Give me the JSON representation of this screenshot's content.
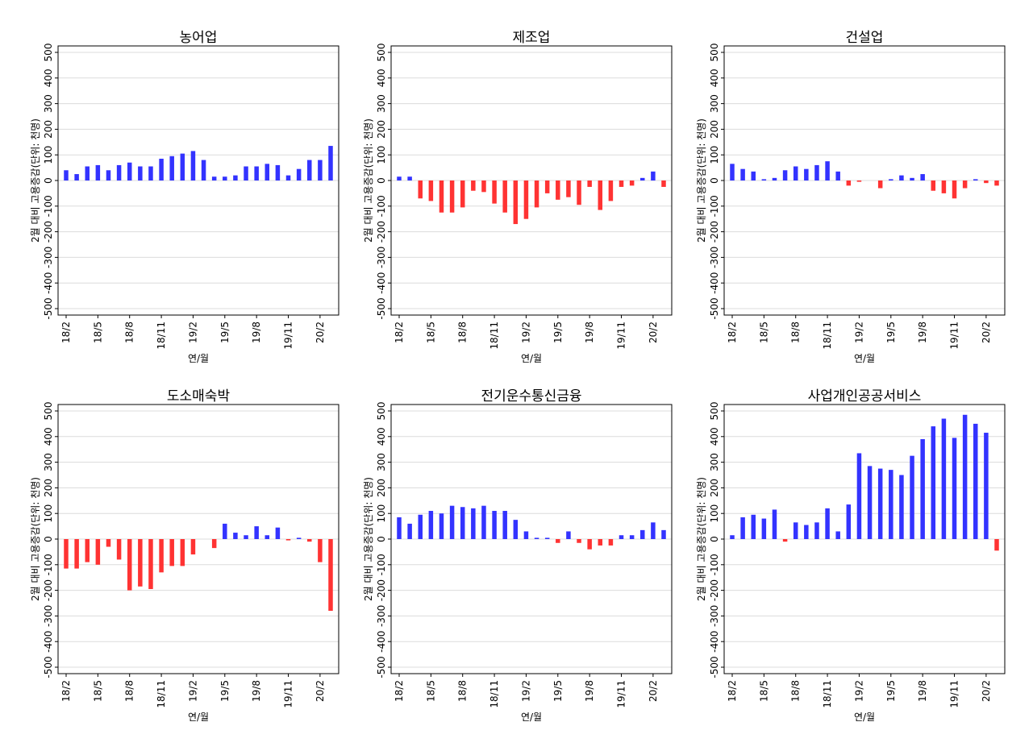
{
  "chart_data": [
    {
      "type": "bar",
      "title": "농어업",
      "xlabel": "연/월",
      "ylabel": "2월 대비 고용증감(단위: 천명)",
      "ylim": [
        -500,
        500
      ],
      "yticks": [
        -500,
        -400,
        -300,
        -200,
        -100,
        0,
        100,
        200,
        300,
        400,
        500
      ],
      "tick_labels": [
        "18/2",
        "18/5",
        "18/8",
        "18/11",
        "19/2",
        "19/5",
        "19/8",
        "19/11",
        "20/2"
      ],
      "categories": [
        "18/2",
        "18/3",
        "18/4",
        "18/5",
        "18/6",
        "18/7",
        "18/8",
        "18/9",
        "18/10",
        "18/11",
        "18/12",
        "19/1",
        "19/2",
        "19/3",
        "19/4",
        "19/5",
        "19/6",
        "19/7",
        "19/8",
        "19/9",
        "19/10",
        "19/11",
        "19/12",
        "20/1",
        "20/2",
        "20/3"
      ],
      "values": [
        40,
        25,
        55,
        60,
        40,
        60,
        70,
        55,
        55,
        85,
        95,
        105,
        115,
        80,
        15,
        15,
        20,
        55,
        55,
        65,
        60,
        20,
        45,
        80,
        80,
        135
      ],
      "colors": {
        "positive": "#3333ff",
        "negative": "#ff3333"
      },
      "grid": true
    },
    {
      "type": "bar",
      "title": "제조업",
      "xlabel": "연/월",
      "ylabel": "2월 대비 고용증감(단위: 천명)",
      "ylim": [
        -500,
        500
      ],
      "yticks": [
        -500,
        -400,
        -300,
        -200,
        -100,
        0,
        100,
        200,
        300,
        400,
        500
      ],
      "tick_labels": [
        "18/2",
        "18/5",
        "18/8",
        "18/11",
        "19/2",
        "19/5",
        "19/8",
        "19/11",
        "20/2"
      ],
      "categories": [
        "18/2",
        "18/3",
        "18/4",
        "18/5",
        "18/6",
        "18/7",
        "18/8",
        "18/9",
        "18/10",
        "18/11",
        "18/12",
        "19/1",
        "19/2",
        "19/3",
        "19/4",
        "19/5",
        "19/6",
        "19/7",
        "19/8",
        "19/9",
        "19/10",
        "19/11",
        "19/12",
        "20/1",
        "20/2",
        "20/3"
      ],
      "values": [
        15,
        15,
        -70,
        -80,
        -125,
        -125,
        -105,
        -40,
        -45,
        -90,
        -125,
        -170,
        -150,
        -105,
        -50,
        -75,
        -65,
        -95,
        -25,
        -115,
        -80,
        -25,
        -20,
        10,
        35,
        -25
      ],
      "colors": {
        "positive": "#3333ff",
        "negative": "#ff3333"
      },
      "grid": true
    },
    {
      "type": "bar",
      "title": "건설업",
      "xlabel": "연/월",
      "ylabel": "2월 대비 고용증감(단위: 천명)",
      "ylim": [
        -500,
        500
      ],
      "yticks": [
        -500,
        -400,
        -300,
        -200,
        -100,
        0,
        100,
        200,
        300,
        400,
        500
      ],
      "tick_labels": [
        "18/2",
        "18/5",
        "18/8",
        "18/11",
        "19/2",
        "19/5",
        "19/8",
        "19/11",
        "20/2"
      ],
      "categories": [
        "18/2",
        "18/3",
        "18/4",
        "18/5",
        "18/6",
        "18/7",
        "18/8",
        "18/9",
        "18/10",
        "18/11",
        "18/12",
        "19/1",
        "19/2",
        "19/3",
        "19/4",
        "19/5",
        "19/6",
        "19/7",
        "19/8",
        "19/9",
        "19/10",
        "19/11",
        "19/12",
        "20/1",
        "20/2",
        "20/3"
      ],
      "values": [
        65,
        45,
        35,
        5,
        10,
        40,
        55,
        45,
        60,
        75,
        35,
        -20,
        -5,
        0,
        -30,
        5,
        20,
        10,
        25,
        -40,
        -50,
        -70,
        -30,
        5,
        -10,
        -20
      ],
      "colors": {
        "positive": "#3333ff",
        "negative": "#ff3333"
      },
      "grid": true
    },
    {
      "type": "bar",
      "title": "도소매숙박",
      "xlabel": "연/월",
      "ylabel": "2월 대비 고용증감(단위: 천명)",
      "ylim": [
        -500,
        500
      ],
      "yticks": [
        -500,
        -400,
        -300,
        -200,
        -100,
        0,
        100,
        200,
        300,
        400,
        500
      ],
      "tick_labels": [
        "18/2",
        "18/5",
        "18/8",
        "18/11",
        "19/2",
        "19/5",
        "19/8",
        "19/11",
        "20/2"
      ],
      "categories": [
        "18/2",
        "18/3",
        "18/4",
        "18/5",
        "18/6",
        "18/7",
        "18/8",
        "18/9",
        "18/10",
        "18/11",
        "18/12",
        "19/1",
        "19/2",
        "19/3",
        "19/4",
        "19/5",
        "19/6",
        "19/7",
        "19/8",
        "19/9",
        "19/10",
        "19/11",
        "19/12",
        "20/1",
        "20/2",
        "20/3"
      ],
      "values": [
        -115,
        -115,
        -90,
        -100,
        -30,
        -80,
        -200,
        -185,
        -195,
        -130,
        -105,
        -105,
        -60,
        0,
        -35,
        60,
        25,
        15,
        50,
        15,
        45,
        -5,
        5,
        -10,
        -90,
        -280
      ],
      "colors": {
        "positive": "#3333ff",
        "negative": "#ff3333"
      },
      "grid": true
    },
    {
      "type": "bar",
      "title": "전기운수통신금융",
      "xlabel": "연/월",
      "ylabel": "2월 대비 고용증감(단위: 천명)",
      "ylim": [
        -500,
        500
      ],
      "yticks": [
        -500,
        -400,
        -300,
        -200,
        -100,
        0,
        100,
        200,
        300,
        400,
        500
      ],
      "tick_labels": [
        "18/2",
        "18/5",
        "18/8",
        "18/11",
        "19/2",
        "19/5",
        "19/8",
        "19/11",
        "20/2"
      ],
      "categories": [
        "18/2",
        "18/3",
        "18/4",
        "18/5",
        "18/6",
        "18/7",
        "18/8",
        "18/9",
        "18/10",
        "18/11",
        "18/12",
        "19/1",
        "19/2",
        "19/3",
        "19/4",
        "19/5",
        "19/6",
        "19/7",
        "19/8",
        "19/9",
        "19/10",
        "19/11",
        "19/12",
        "20/1",
        "20/2",
        "20/3"
      ],
      "values": [
        85,
        60,
        95,
        110,
        100,
        130,
        125,
        120,
        130,
        110,
        110,
        75,
        30,
        5,
        5,
        -15,
        30,
        -15,
        -40,
        -25,
        -25,
        15,
        15,
        35,
        65,
        35
      ],
      "colors": {
        "positive": "#3333ff",
        "negative": "#ff3333"
      },
      "grid": true
    },
    {
      "type": "bar",
      "title": "사업개인공공서비스",
      "xlabel": "연/월",
      "ylabel": "2월 대비 고용증감(단위: 천명)",
      "ylim": [
        -500,
        500
      ],
      "yticks": [
        -500,
        -400,
        -300,
        -200,
        -100,
        0,
        100,
        200,
        300,
        400,
        500
      ],
      "tick_labels": [
        "18/2",
        "18/5",
        "18/8",
        "18/11",
        "19/2",
        "19/5",
        "19/8",
        "19/11",
        "20/2"
      ],
      "categories": [
        "18/2",
        "18/3",
        "18/4",
        "18/5",
        "18/6",
        "18/7",
        "18/8",
        "18/9",
        "18/10",
        "18/11",
        "18/12",
        "19/1",
        "19/2",
        "19/3",
        "19/4",
        "19/5",
        "19/6",
        "19/7",
        "19/8",
        "19/9",
        "19/10",
        "19/11",
        "19/12",
        "20/1",
        "20/2",
        "20/3"
      ],
      "values": [
        15,
        85,
        95,
        80,
        115,
        -10,
        65,
        55,
        65,
        120,
        30,
        135,
        335,
        285,
        275,
        270,
        250,
        325,
        390,
        440,
        470,
        395,
        485,
        450,
        415,
        -45
      ],
      "colors": {
        "positive": "#3333ff",
        "negative": "#ff3333"
      },
      "grid": true
    }
  ]
}
